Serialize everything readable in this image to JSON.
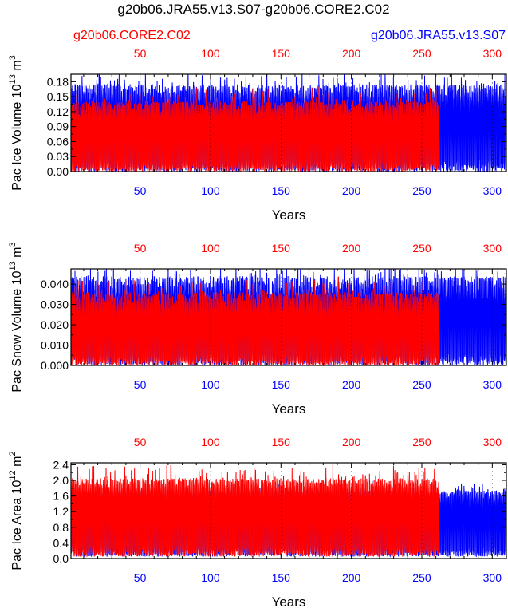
{
  "title": "g20b06.JRA55.v13.S07-g20b06.CORE2.C02",
  "legend": {
    "left_label": "g20b06.CORE2.C02",
    "right_label": "g20b06.JRA55.v13.S07"
  },
  "colors": {
    "series_a": "#ff0000",
    "series_b": "#0000ff",
    "axis": "#000000"
  },
  "chart_data": [
    {
      "type": "line",
      "id": "ice-volume",
      "ylabel_main": "Pac Ice Volume 10",
      "ylabel_exp": "13",
      "ylabel_unit": " m",
      "ylabel_unit_exp": "3",
      "xlabel": "Years",
      "xlim": [
        1,
        310
      ],
      "ylim": [
        0,
        0.195
      ],
      "yticks": [
        "0.00",
        "0.03",
        "0.06",
        "0.09",
        "0.12",
        "0.15",
        "0.18"
      ],
      "ytick_values": [
        0,
        0.03,
        0.06,
        0.09,
        0.12,
        0.15,
        0.18
      ],
      "xticks_bottom": [
        "50",
        "100",
        "150",
        "200",
        "250",
        "300"
      ],
      "xticks_top": [
        "50",
        "100",
        "150",
        "200",
        "250",
        "300"
      ],
      "xtick_values": [
        50,
        100,
        150,
        200,
        250,
        300
      ],
      "series": [
        {
          "name": "g20b06.JRA55.v13.S07",
          "years": 310,
          "low": 0.0,
          "peak_mean": 0.155,
          "peak_amp": 0.02,
          "spikes": 0.03
        },
        {
          "name": "g20b06.CORE2.C02",
          "years": 261,
          "low": 0.0,
          "peak_mean": 0.125,
          "peak_amp": 0.015,
          "spikes": 0.035
        }
      ]
    },
    {
      "type": "line",
      "id": "snow-volume",
      "ylabel_main": "Pac Snow Volume 10",
      "ylabel_exp": "13",
      "ylabel_unit": " m",
      "ylabel_unit_exp": "3",
      "xlabel": "Years",
      "xlim": [
        1,
        310
      ],
      "ylim": [
        0,
        0.0475
      ],
      "yticks": [
        "0.000",
        "0.010",
        "0.020",
        "0.030",
        "0.040"
      ],
      "ytick_values": [
        0,
        0.01,
        0.02,
        0.03,
        0.04
      ],
      "xticks_bottom": [
        "50",
        "100",
        "150",
        "200",
        "250",
        "300"
      ],
      "xticks_top": [
        "50",
        "100",
        "150",
        "200",
        "250",
        "300"
      ],
      "xtick_values": [
        50,
        100,
        150,
        200,
        250,
        300
      ],
      "series": [
        {
          "name": "g20b06.JRA55.v13.S07",
          "years": 310,
          "low": 0.0,
          "peak_mean": 0.038,
          "peak_amp": 0.006,
          "spikes": 0.008
        },
        {
          "name": "g20b06.CORE2.C02",
          "years": 261,
          "low": 0.0,
          "peak_mean": 0.031,
          "peak_amp": 0.005,
          "spikes": 0.009
        }
      ]
    },
    {
      "type": "line",
      "id": "ice-area",
      "ylabel_main": "Pac Ice Area 10",
      "ylabel_exp": "12",
      "ylabel_unit": " m",
      "ylabel_unit_exp": "2",
      "xlabel": "Years",
      "xlim": [
        1,
        310
      ],
      "ylim": [
        0,
        2.45
      ],
      "yticks": [
        "0.0",
        "0.4",
        "0.8",
        "1.2",
        "1.6",
        "2.0",
        "2.4"
      ],
      "ytick_values": [
        0,
        0.4,
        0.8,
        1.2,
        1.6,
        2.0,
        2.4
      ],
      "xticks_bottom": [
        "50",
        "100",
        "150",
        "200",
        "250",
        "300"
      ],
      "xticks_top": [
        "50",
        "100",
        "150",
        "200",
        "250",
        "300"
      ],
      "xtick_values": [
        50,
        100,
        150,
        200,
        250,
        300
      ],
      "series": [
        {
          "name": "g20b06.JRA55.v13.S07",
          "years": 310,
          "low": 0.05,
          "peak_mean": 1.6,
          "peak_amp": 0.15,
          "spikes": 0.25
        },
        {
          "name": "g20b06.CORE2.C02",
          "years": 261,
          "low": 0.05,
          "peak_mean": 1.85,
          "peak_amp": 0.2,
          "spikes": 0.45
        }
      ]
    }
  ]
}
